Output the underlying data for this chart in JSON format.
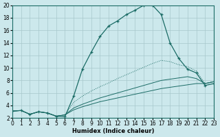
{
  "xlabel": "Humidex (Indice chaleur)",
  "xlim": [
    0,
    23
  ],
  "ylim": [
    2,
    20
  ],
  "xticks": [
    0,
    1,
    2,
    3,
    4,
    5,
    6,
    7,
    8,
    9,
    10,
    11,
    12,
    13,
    14,
    15,
    16,
    17,
    18,
    19,
    20,
    21,
    22,
    23
  ],
  "yticks": [
    2,
    4,
    6,
    8,
    10,
    12,
    14,
    16,
    18,
    20
  ],
  "bg_color": "#cce8ec",
  "grid_color": "#a8c8cc",
  "line_color": "#1a6b65",
  "curves": [
    {
      "x": [
        0,
        1,
        2,
        3,
        4,
        5,
        6,
        7,
        8,
        9,
        10,
        11,
        12,
        13,
        14,
        15,
        16,
        17,
        18,
        19,
        20,
        21,
        22,
        23
      ],
      "y": [
        3.1,
        3.2,
        2.6,
        3.0,
        2.8,
        2.3,
        2.2,
        5.5,
        9.8,
        12.5,
        15.0,
        16.7,
        17.5,
        18.5,
        19.2,
        20.0,
        20.0,
        18.5,
        14.0,
        11.5,
        9.8,
        9.2,
        7.2,
        7.5
      ],
      "style": "marker"
    },
    {
      "x": [
        0,
        1,
        2,
        3,
        4,
        5,
        6,
        7,
        8,
        9,
        10,
        11,
        12,
        13,
        14,
        15,
        16,
        17,
        18,
        19,
        20,
        21,
        22,
        23
      ],
      "y": [
        3.1,
        3.2,
        2.6,
        3.0,
        2.8,
        2.3,
        2.5,
        4.5,
        5.5,
        6.3,
        7.0,
        7.6,
        8.3,
        8.9,
        9.5,
        10.1,
        10.7,
        11.2,
        11.0,
        10.5,
        10.2,
        9.5,
        7.5,
        7.8
      ],
      "style": "dotted"
    },
    {
      "x": [
        0,
        1,
        2,
        3,
        4,
        5,
        6,
        7,
        8,
        9,
        10,
        11,
        12,
        13,
        14,
        15,
        16,
        17,
        18,
        19,
        20,
        21,
        22,
        23
      ],
      "y": [
        3.1,
        3.2,
        2.6,
        3.0,
        2.8,
        2.3,
        2.5,
        3.6,
        4.2,
        4.7,
        5.2,
        5.6,
        6.0,
        6.4,
        6.8,
        7.2,
        7.6,
        8.0,
        8.2,
        8.4,
        8.6,
        8.3,
        7.5,
        7.8
      ],
      "style": "solid"
    },
    {
      "x": [
        0,
        1,
        2,
        3,
        4,
        5,
        6,
        7,
        8,
        9,
        10,
        11,
        12,
        13,
        14,
        15,
        16,
        17,
        18,
        19,
        20,
        21,
        22,
        23
      ],
      "y": [
        3.1,
        3.2,
        2.6,
        3.0,
        2.8,
        2.3,
        2.5,
        3.3,
        3.8,
        4.2,
        4.6,
        4.9,
        5.2,
        5.5,
        5.8,
        6.1,
        6.4,
        6.7,
        6.9,
        7.1,
        7.3,
        7.5,
        7.5,
        7.8
      ],
      "style": "solid"
    }
  ]
}
